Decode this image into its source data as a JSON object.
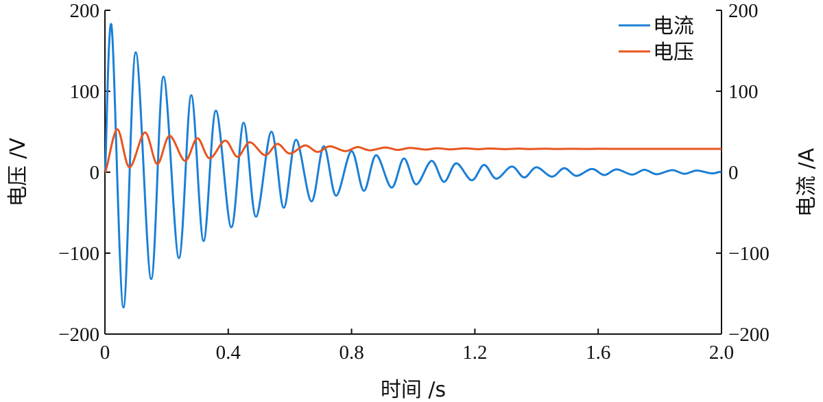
{
  "chart_data": {
    "type": "line",
    "title": "",
    "xlabel": "时间 /s",
    "ylabel_left": "电压 /V",
    "ylabel_right": "电流 /A",
    "xlim": [
      0,
      2.0
    ],
    "ylim_left": [
      -200,
      200
    ],
    "ylim_right": [
      -200,
      200
    ],
    "x_ticks": [
      "0",
      "0.4",
      "0.8",
      "1.2",
      "1.6",
      "2.0"
    ],
    "y_left_ticks": [
      "200",
      "100",
      "0",
      "−100",
      "−200"
    ],
    "y_right_ticks": [
      "200",
      "100",
      "0",
      "−100",
      "−200"
    ],
    "grid": false,
    "legend_position": "top-right",
    "series": [
      {
        "name": "电流",
        "axis": "right",
        "color": "#1a7fd6",
        "x": [
          0,
          0.02,
          0.06,
          0.1,
          0.15,
          0.19,
          0.24,
          0.28,
          0.32,
          0.36,
          0.41,
          0.45,
          0.49,
          0.54,
          0.58,
          0.62,
          0.67,
          0.71,
          0.75,
          0.8,
          0.84,
          0.88,
          0.93,
          0.97,
          1.01,
          1.06,
          1.1,
          1.14,
          1.19,
          1.23,
          1.27,
          1.32,
          1.36,
          1.4,
          1.45,
          1.49,
          1.53,
          1.58,
          1.62,
          1.66,
          1.71,
          1.75,
          1.79,
          1.84,
          1.88,
          1.92,
          1.97,
          2.0
        ],
        "y": [
          0,
          183,
          -167,
          148,
          -132,
          118,
          -106,
          95,
          -85,
          76,
          -68,
          61,
          -55,
          50,
          -44,
          40,
          -36,
          32,
          -29,
          26,
          -23,
          21,
          -19,
          17,
          -15,
          14,
          -12,
          11,
          -10,
          9,
          -8,
          7,
          -6.5,
          6,
          -5.5,
          5,
          -4.5,
          4,
          -3.5,
          3.5,
          -3,
          3,
          -2.5,
          2.5,
          -2,
          2,
          -1.5,
          1
        ]
      },
      {
        "name": "电压",
        "axis": "left",
        "color": "#e8551e",
        "x": [
          0,
          0.04,
          0.08,
          0.13,
          0.17,
          0.21,
          0.26,
          0.3,
          0.34,
          0.39,
          0.43,
          0.47,
          0.52,
          0.56,
          0.6,
          0.65,
          0.69,
          0.73,
          0.78,
          0.82,
          0.86,
          0.91,
          0.95,
          0.99,
          1.04,
          1.08,
          1.12,
          1.17,
          1.21,
          1.25,
          1.3,
          1.34,
          1.38,
          1.43,
          1.47,
          1.51,
          1.56,
          1.6,
          1.64,
          1.69,
          1.73,
          1.77,
          1.82,
          1.86,
          1.9,
          1.95,
          2.0
        ],
        "y": [
          0,
          53,
          6,
          49,
          10,
          45,
          14,
          42,
          17,
          39,
          19,
          37,
          21,
          35,
          23,
          33,
          25,
          32,
          26,
          31,
          27,
          30.5,
          27.5,
          30,
          28,
          29.6,
          28.2,
          29.4,
          28.4,
          29.2,
          28.5,
          29.1,
          28.6,
          29,
          28.7,
          28.9,
          28.7,
          28.9,
          28.8,
          28.8,
          28.8,
          28.8,
          28.8,
          28.8,
          28.8,
          28.8,
          28.8
        ]
      }
    ]
  }
}
